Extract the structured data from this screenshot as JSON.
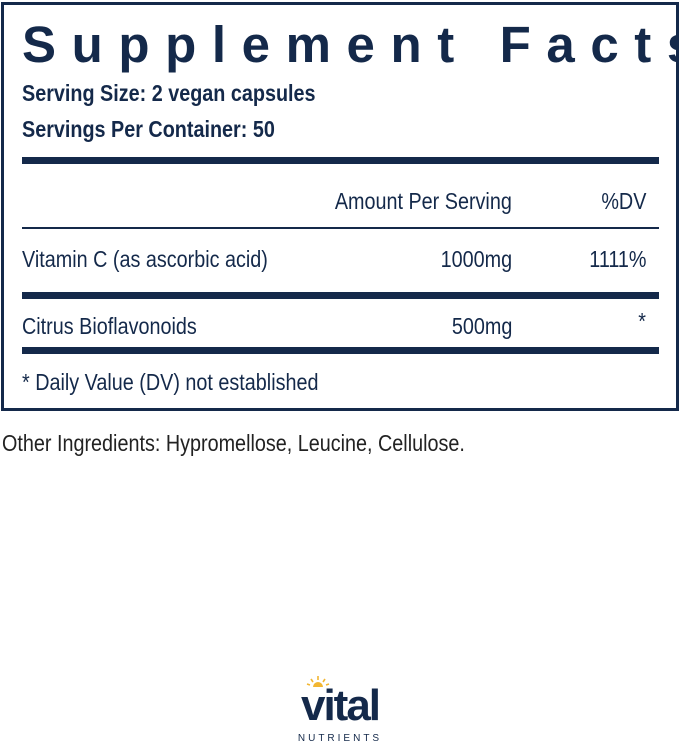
{
  "label": {
    "title": "Supplement Facts",
    "serving_size": "Serving Size: 2 vegan capsules",
    "servings_per_container": "Servings Per Container: 50",
    "columns": {
      "amount": "Amount Per Serving",
      "dv": "%DV"
    },
    "rows": [
      {
        "name": "Vitamin C (as ascorbic acid)",
        "amount": "1000mg",
        "dv": "1111%"
      },
      {
        "name": "Citrus Bioflavonoids",
        "amount": "500mg",
        "dv": "*"
      }
    ],
    "footnote": "* Daily Value (DV) not established"
  },
  "other_ingredients": "Other Ingredients: Hypromellose, Leucine, Cellulose.",
  "brand": {
    "name": "vital",
    "tagline": "NUTRIENTS"
  },
  "colors": {
    "label": "#14294a",
    "sun": "#f2b632"
  }
}
